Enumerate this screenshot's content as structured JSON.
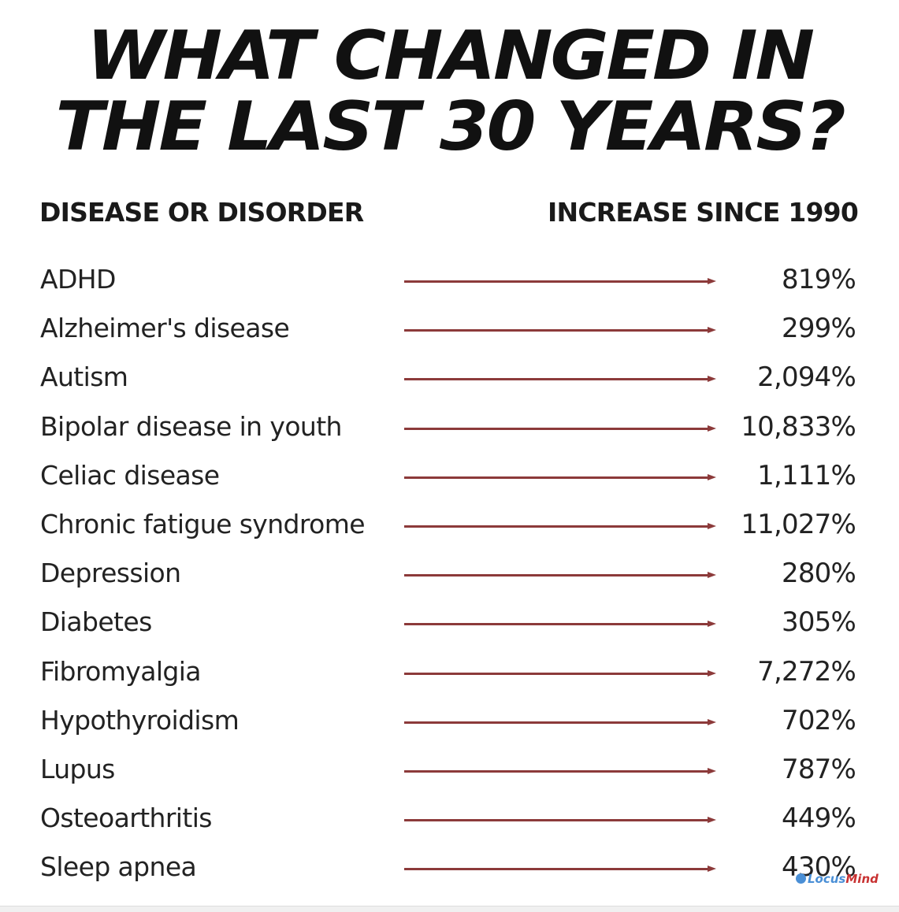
{
  "title": {
    "line1": "WHAT CHANGED IN",
    "line2": "THE LAST 30 YEARS?"
  },
  "headers": {
    "left": "DISEASE OR DISORDER",
    "right": "INCREASE SINCE 1990"
  },
  "rows": [
    {
      "name": "ADHD",
      "value": "819%"
    },
    {
      "name": "Alzheimer's disease",
      "value": "299%"
    },
    {
      "name": "Autism",
      "value": "2,094%"
    },
    {
      "name": "Bipolar disease in youth",
      "value": "10,833%"
    },
    {
      "name": "Celiac disease",
      "value": "1,111%"
    },
    {
      "name": "Chronic fatigue syndrome",
      "value": "11,027%"
    },
    {
      "name": "Depression",
      "value": "280%"
    },
    {
      "name": "Diabetes",
      "value": "305%"
    },
    {
      "name": "Fibromyalgia",
      "value": "7,272%"
    },
    {
      "name": "Hypothyroidism",
      "value": "702%"
    },
    {
      "name": "Lupus",
      "value": "787%"
    },
    {
      "name": "Osteoarthritis",
      "value": "449%"
    },
    {
      "name": "Sleep apnea",
      "value": "430%"
    }
  ],
  "watermark": {
    "part1": "Locus",
    "part2": "Mind"
  },
  "colors": {
    "arrow": "#8c3a3a",
    "text": "#1a1a1a"
  }
}
